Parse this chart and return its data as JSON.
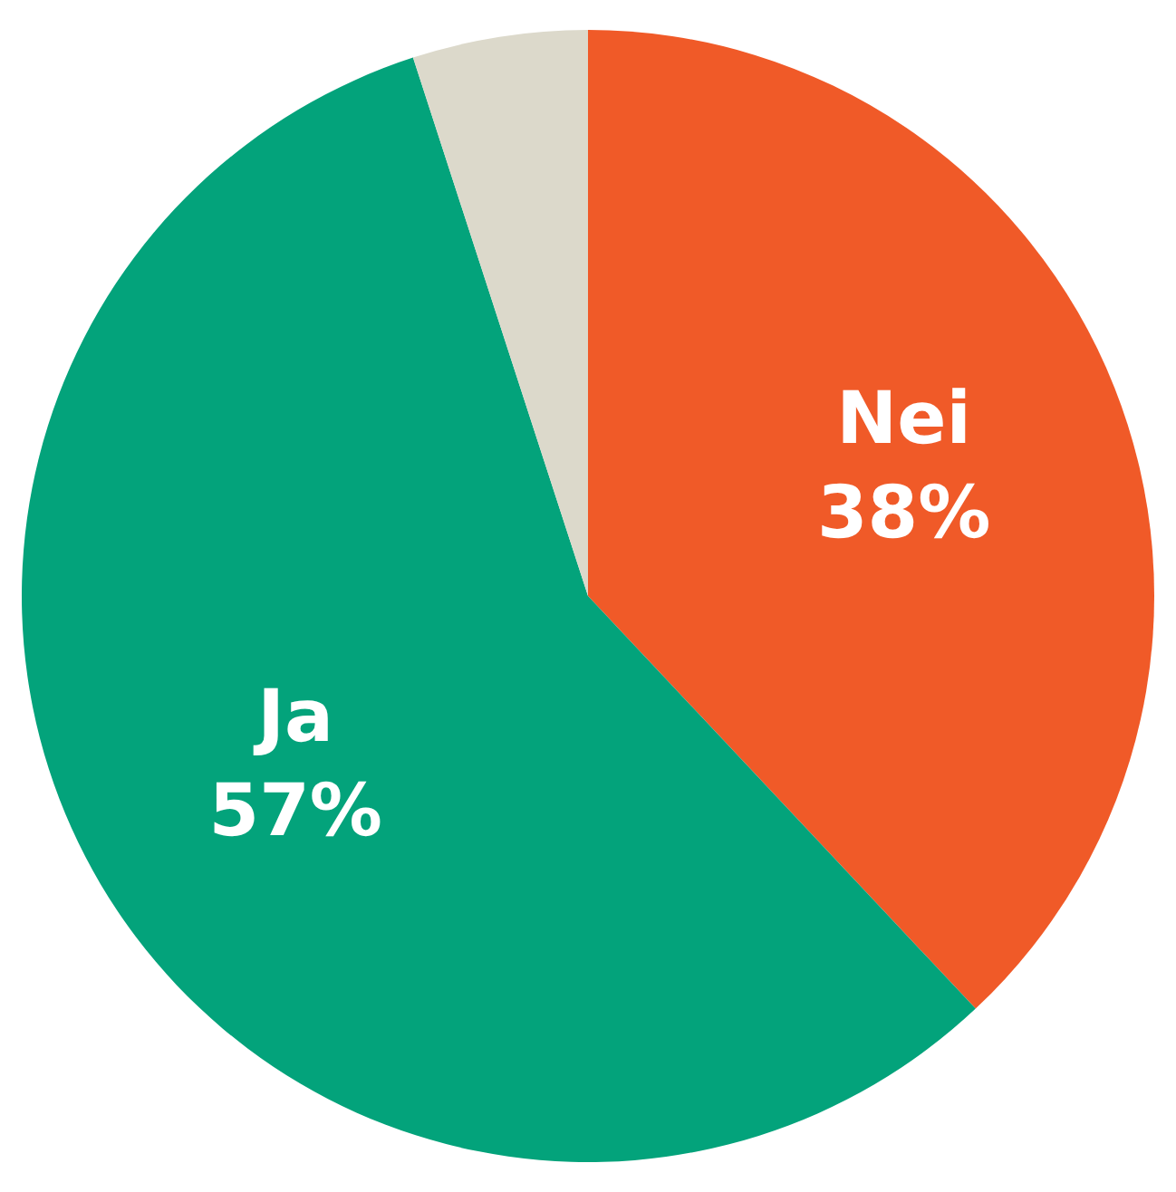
{
  "chart_data": {
    "type": "pie",
    "categories": [
      "Nei",
      "Ja",
      null
    ],
    "values": [
      38,
      57,
      5
    ],
    "colors": [
      "#f05a28",
      "#03a37b",
      "#dcd9cb"
    ],
    "value_labels": [
      "38%",
      "57%",
      null
    ],
    "legend": false
  }
}
